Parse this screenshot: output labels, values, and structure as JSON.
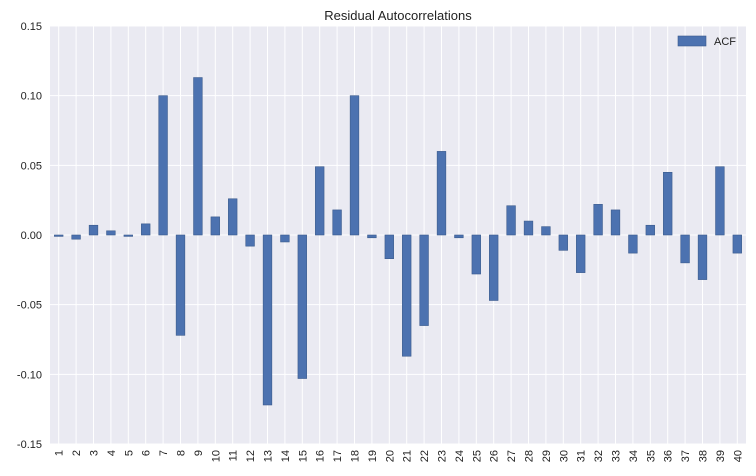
{
  "chart_data": {
    "type": "bar",
    "title": "Residual Autocorrelations",
    "xlabel": "",
    "ylabel": "",
    "ylim": [
      -0.15,
      0.15
    ],
    "yticks": [
      "-0.15",
      "-0.10",
      "-0.05",
      "0.00",
      "0.05",
      "0.10",
      "0.15"
    ],
    "grid": true,
    "legend_position": "top-right",
    "categories": [
      "1",
      "2",
      "3",
      "4",
      "5",
      "6",
      "7",
      "8",
      "9",
      "10",
      "11",
      "12",
      "13",
      "14",
      "15",
      "16",
      "17",
      "18",
      "19",
      "20",
      "21",
      "22",
      "23",
      "24",
      "25",
      "26",
      "27",
      "28",
      "29",
      "30",
      "31",
      "32",
      "33",
      "34",
      "35",
      "36",
      "37",
      "38",
      "39",
      "40"
    ],
    "series": [
      {
        "name": "ACF",
        "color": "#4c72b0",
        "values": [
          -0.001,
          -0.003,
          0.007,
          0.003,
          -0.001,
          0.008,
          0.1,
          -0.072,
          0.113,
          0.013,
          0.026,
          -0.008,
          -0.122,
          -0.005,
          -0.103,
          0.049,
          0.018,
          0.1,
          -0.002,
          -0.017,
          -0.087,
          -0.065,
          0.06,
          -0.002,
          -0.028,
          -0.047,
          0.021,
          0.01,
          0.006,
          -0.011,
          -0.027,
          0.022,
          0.018,
          -0.013,
          0.007,
          0.045,
          -0.02,
          -0.032,
          0.049,
          -0.013
        ]
      }
    ]
  }
}
